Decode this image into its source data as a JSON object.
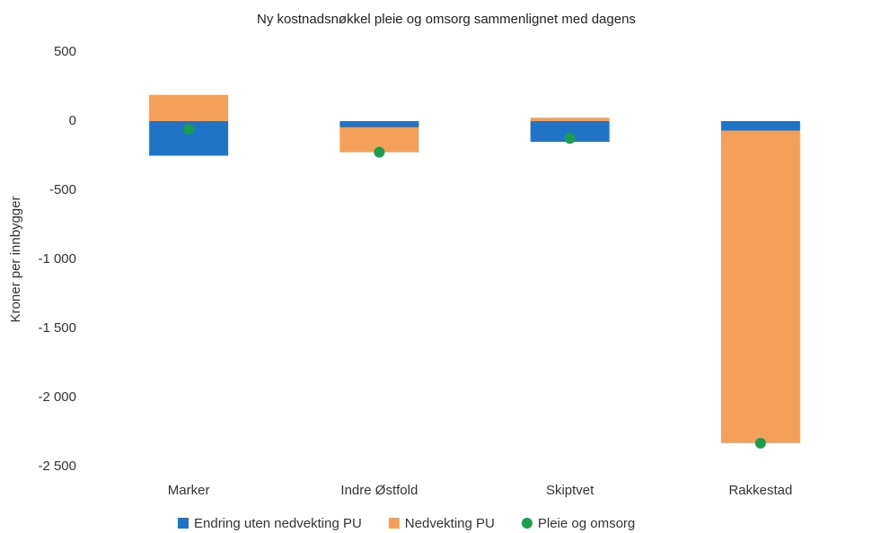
{
  "chart_data": {
    "type": "bar",
    "title": "Ny kostnadsnøkkel pleie og omsorg sammenlignet med dagens",
    "y_label": "Kroner per innbygger",
    "categories": [
      "Marker",
      "Indre Østfold",
      "Skiptvet",
      "Rakkestad"
    ],
    "series": [
      {
        "name": "Endring uten nedvekting PU",
        "color": "#1f74c8",
        "values": [
          -250,
          -45,
          -150,
          -70
        ]
      },
      {
        "name": "Nedvekting PU",
        "color": "#f5a05a",
        "values": [
          190,
          -180,
          25,
          -2260
        ]
      },
      {
        "name": "Pleie og omsorg",
        "color": "#1a9e4a",
        "type": "scatter",
        "values": [
          -60,
          -225,
          -125,
          -2330
        ]
      }
    ],
    "ylim": [
      -2500,
      500
    ],
    "yticks": [
      {
        "value": -2500,
        "label": "-2 500"
      },
      {
        "value": -2000,
        "label": "-2 000"
      },
      {
        "value": -1500,
        "label": "-1 500"
      },
      {
        "value": -1000,
        "label": "-1 000"
      },
      -500,
      0,
      500
    ],
    "grid": false,
    "legend": "bottom"
  }
}
